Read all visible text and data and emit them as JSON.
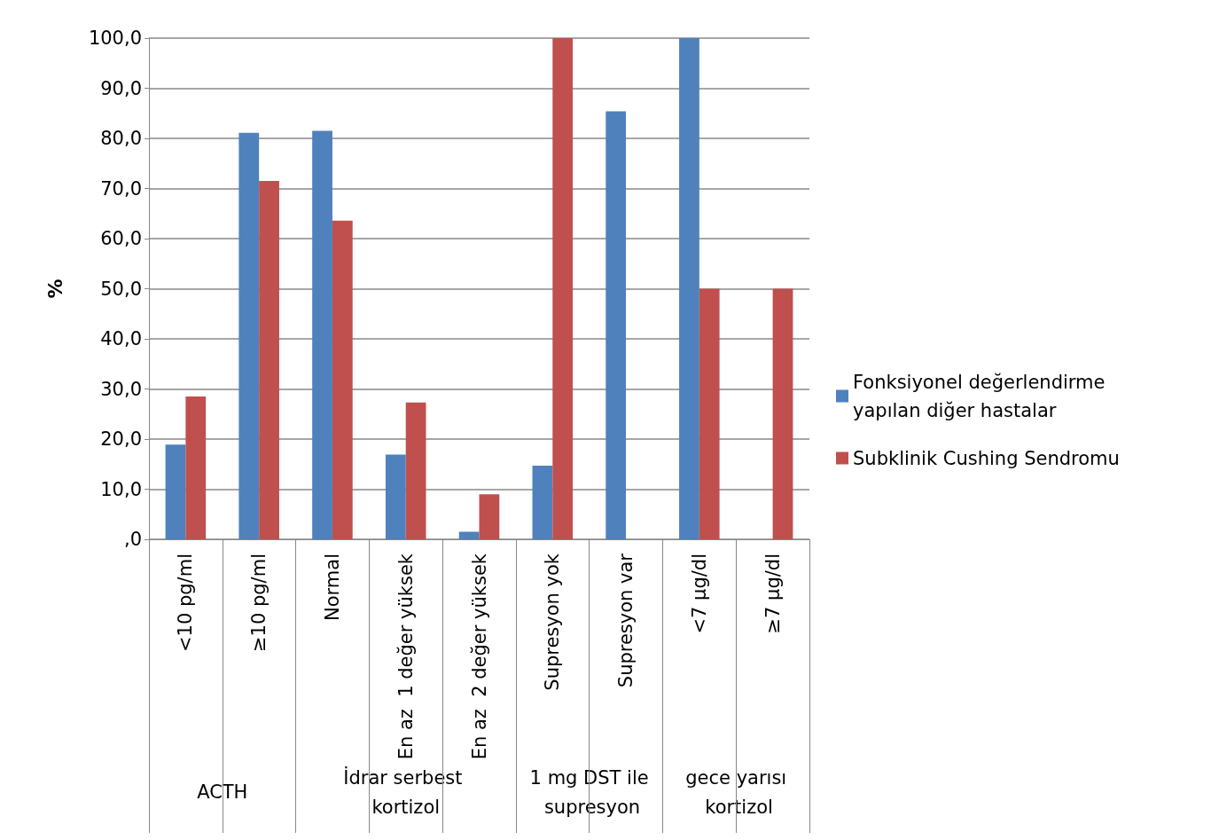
{
  "chart_data": {
    "type": "bar",
    "ylabel": "%",
    "categories": [
      "<10 pg/ml",
      "≥10 pg/ml",
      "Normal",
      "En az  1 değer yüksek",
      "En az  2 değer yüksek",
      "Supresyon yok",
      "Supresyon var",
      "<7 µg/dl",
      "≥7 µg/dl"
    ],
    "series": [
      {
        "name": "Fonksiyonel değerlendirme yapılan diğer hastalar",
        "color": "#4f81bd",
        "values": [
          18.9,
          81.1,
          81.5,
          16.9,
          1.5,
          14.7,
          85.4,
          100,
          0
        ]
      },
      {
        "name": "Subklinik Cushing Sendromu",
        "color": "#c0504d",
        "values": [
          28.5,
          71.5,
          63.6,
          27.3,
          9.0,
          100,
          0,
          50,
          50
        ]
      }
    ],
    "ylim": [
      0,
      100
    ],
    "yticks": [
      {
        "value": 0,
        "label": ",0"
      },
      {
        "value": 10,
        "label": "10,0"
      },
      {
        "value": 20,
        "label": "20,0"
      },
      {
        "value": 30,
        "label": "30,0"
      },
      {
        "value": 40,
        "label": "40,0"
      },
      {
        "value": 50,
        "label": "50,0"
      },
      {
        "value": 60,
        "label": "60,0"
      },
      {
        "value": 70,
        "label": "70,0"
      },
      {
        "value": 80,
        "label": "80,0"
      },
      {
        "value": 90,
        "label": "90,0"
      },
      {
        "value": 100,
        "label": "100,0"
      }
    ],
    "grid": "y",
    "legend": "right",
    "annotations": [
      "ACTH",
      "İdrar serbest kortizol",
      "1 mg DST ile supresyon",
      "gece yarısı kortizol"
    ]
  }
}
